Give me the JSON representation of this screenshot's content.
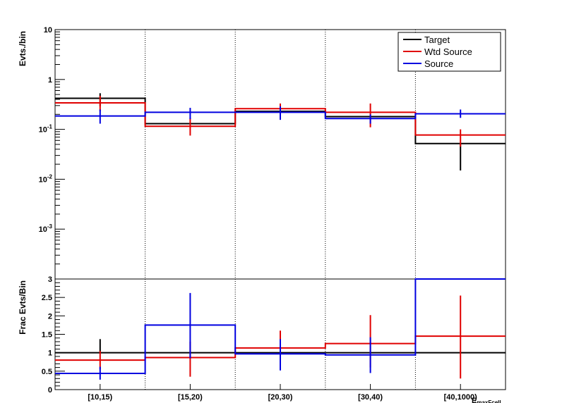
{
  "chart_data": [
    {
      "type": "step",
      "ylabel": "Evts./bin",
      "log_y": true,
      "ylim": [
        0.0001,
        10
      ],
      "y_ticks": [
        {
          "value": 0.001,
          "base": "10",
          "exp": "-3"
        },
        {
          "value": 0.01,
          "base": "10",
          "exp": "-2"
        },
        {
          "value": 0.1,
          "base": "10",
          "exp": "-1"
        },
        {
          "value": 1,
          "base": "1",
          "exp": ""
        },
        {
          "value": 10,
          "base": "10",
          "exp": ""
        }
      ],
      "categories": [
        "[10,15)",
        "[15,20)",
        "[20,30)",
        "[30,40)",
        "[40,1000)"
      ],
      "legend_position": "top-right",
      "series": [
        {
          "name": "Target",
          "color": "#000000",
          "values": [
            0.42,
            0.13,
            0.23,
            0.18,
            0.052
          ],
          "err_low": [
            0.29,
            0.13,
            0.23,
            0.18,
            0.015
          ],
          "err_high": [
            0.53,
            0.13,
            0.23,
            0.18,
            0.052
          ]
        },
        {
          "name": "Wtd Source",
          "color": "#e00000",
          "values": [
            0.34,
            0.115,
            0.26,
            0.22,
            0.077
          ],
          "err_low": [
            0.23,
            0.075,
            0.19,
            0.11,
            0.045
          ],
          "err_high": [
            0.47,
            0.17,
            0.33,
            0.33,
            0.1
          ]
        },
        {
          "name": "Source",
          "color": "#0000e0",
          "values": [
            0.185,
            0.22,
            0.22,
            0.165,
            0.205
          ],
          "err_low": [
            0.13,
            0.16,
            0.155,
            0.13,
            0.17
          ],
          "err_high": [
            0.25,
            0.27,
            0.29,
            0.2,
            0.25
          ]
        }
      ]
    },
    {
      "type": "step",
      "ylabel": "Frac Evts/Bin",
      "xlabel": "EmaxFcell",
      "ylim": [
        0,
        3
      ],
      "y_ticks": [
        "0",
        "0.5",
        "1",
        "1.5",
        "2",
        "2.5",
        "3"
      ],
      "categories": [
        "[10,15)",
        "[15,20)",
        "[20,30)",
        "[30,40)",
        "[40,1000)"
      ],
      "series": [
        {
          "name": "Target",
          "color": "#000000",
          "values": [
            1,
            1,
            1,
            1,
            1
          ],
          "err_low": [
            1,
            1,
            1,
            1,
            1
          ],
          "err_high": [
            1.37,
            1,
            1,
            1,
            1
          ]
        },
        {
          "name": "Wtd Source",
          "color": "#e00000",
          "values": [
            0.8,
            0.87,
            1.13,
            1.25,
            1.45
          ],
          "err_low": [
            0.55,
            0.35,
            0.83,
            0.6,
            0.3
          ],
          "err_high": [
            1.05,
            1.3,
            1.6,
            2.02,
            2.55
          ]
        },
        {
          "name": "Source",
          "color": "#0000e0",
          "values": [
            0.44,
            1.75,
            0.97,
            0.94,
            3.0
          ],
          "err_low": [
            0.27,
            0.85,
            0.52,
            0.45,
            3.0
          ],
          "err_high": [
            0.62,
            2.62,
            1.37,
            1.42,
            3.0
          ]
        }
      ]
    }
  ]
}
